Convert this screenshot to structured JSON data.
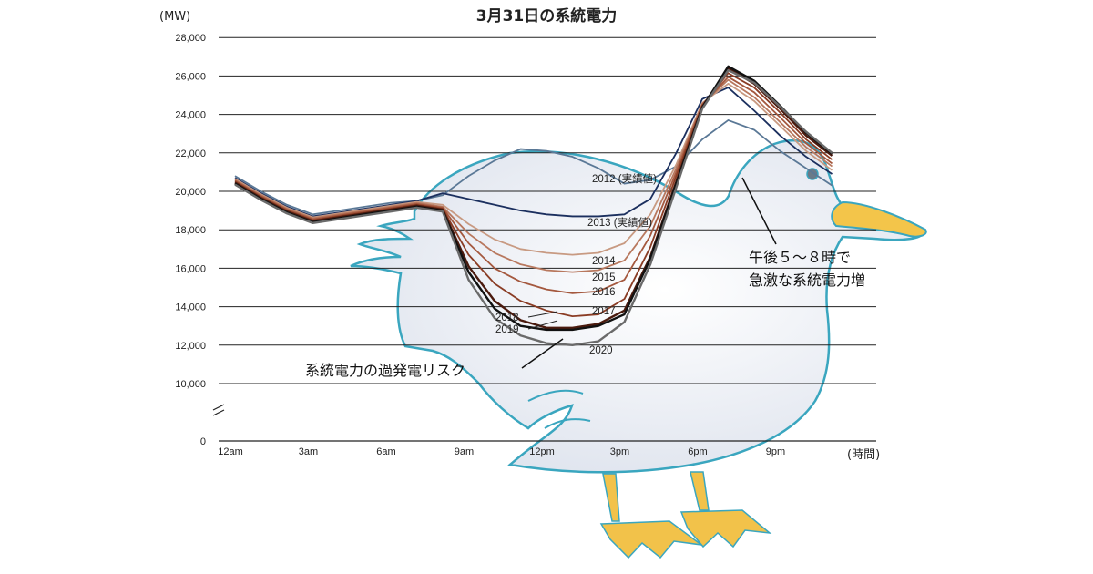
{
  "chart_data": {
    "type": "line",
    "title": "3月31日の系統電力",
    "ylabel": "(MW)",
    "xlabel": "(時間)",
    "ylim": [
      0,
      28000
    ],
    "y_ticks": [
      "28,000",
      "26,000",
      "24,000",
      "22,000",
      "20,000",
      "18,000",
      "16,000",
      "14,000",
      "12,000",
      "10,000",
      "0"
    ],
    "x_ticks": [
      "12am",
      "3am",
      "6am",
      "9am",
      "12pm",
      "3pm",
      "6pm",
      "9pm"
    ],
    "x": [
      0,
      1,
      2,
      3,
      4,
      5,
      6,
      7,
      8,
      9,
      10,
      11,
      12,
      13,
      14,
      15,
      16,
      17,
      18,
      19,
      20,
      21,
      22,
      23
    ],
    "series": [
      {
        "name": "2012 (実績値)",
        "color": "#5a7896",
        "values": [
          20800,
          20000,
          19300,
          18800,
          19000,
          19200,
          19400,
          19500,
          19800,
          20800,
          21600,
          22200,
          22100,
          21800,
          21200,
          20400,
          20600,
          21300,
          22700,
          23700,
          23200,
          22100,
          21200,
          20300
        ]
      },
      {
        "name": "2013 (実績値)",
        "color": "#1b2f5e",
        "values": [
          20700,
          19900,
          19200,
          18700,
          18900,
          19100,
          19300,
          19500,
          19900,
          19600,
          19300,
          19000,
          18800,
          18700,
          18700,
          18800,
          19600,
          22000,
          24800,
          25400,
          24200,
          22900,
          21800,
          20900
        ]
      },
      {
        "name": "2014",
        "color": "#c89a82",
        "values": [
          20650,
          19850,
          19150,
          18650,
          18850,
          19050,
          19250,
          19450,
          19300,
          18300,
          17500,
          17000,
          16800,
          16700,
          16800,
          17300,
          18800,
          21400,
          24600,
          25600,
          24700,
          23400,
          22100,
          21100
        ]
      },
      {
        "name": "2015",
        "color": "#b8785e",
        "values": [
          20600,
          19800,
          19100,
          18600,
          18800,
          19000,
          19200,
          19400,
          19200,
          17800,
          16800,
          16200,
          15900,
          15800,
          15900,
          16400,
          18200,
          21200,
          24550,
          25800,
          24900,
          23600,
          22300,
          21300
        ]
      },
      {
        "name": "2016",
        "color": "#a4583e",
        "values": [
          20550,
          19750,
          19050,
          18550,
          18750,
          18950,
          19150,
          19350,
          19150,
          17300,
          16000,
          15300,
          14900,
          14700,
          14800,
          15400,
          17700,
          21000,
          24500,
          25950,
          25150,
          23850,
          22500,
          21450
        ]
      },
      {
        "name": "2017",
        "color": "#8a3c24",
        "values": [
          20500,
          19700,
          19000,
          18500,
          18700,
          18900,
          19100,
          19300,
          19100,
          16700,
          15200,
          14300,
          13800,
          13500,
          13600,
          14400,
          17100,
          20800,
          24450,
          26150,
          25400,
          24100,
          22700,
          21650
        ]
      },
      {
        "name": "2018",
        "color": "#4a1a0e",
        "values": [
          20450,
          19650,
          18950,
          18450,
          18650,
          18850,
          19050,
          19250,
          19050,
          16100,
          14300,
          13300,
          12900,
          12900,
          13100,
          13800,
          16600,
          20500,
          24400,
          26400,
          25600,
          24300,
          22900,
          21850
        ]
      },
      {
        "name": "2019",
        "color": "#111111",
        "values": [
          20400,
          19600,
          18900,
          18400,
          18600,
          18800,
          19000,
          19200,
          19000,
          15800,
          13900,
          13000,
          12800,
          12800,
          13000,
          13600,
          16500,
          20400,
          24350,
          26500,
          25750,
          24450,
          23050,
          21950
        ]
      },
      {
        "name": "2020",
        "color": "#6a6a6a",
        "values": [
          20350,
          19550,
          18850,
          18350,
          18550,
          18750,
          18950,
          19150,
          18950,
          15400,
          13400,
          12500,
          12100,
          12000,
          12200,
          13200,
          16200,
          20200,
          24300,
          26300,
          25650,
          24400,
          23100,
          22000
        ]
      }
    ],
    "annotations": [
      "午後５～８時で",
      "急激な系統電力増",
      "系統電力の過発電リスク"
    ],
    "grid": true
  },
  "colors": {
    "duck_outline": "#3aa6bf",
    "duck_fill": "#eef1f6",
    "duck_beak": "#f3c54a",
    "duck_feet": "#f2c24a"
  }
}
